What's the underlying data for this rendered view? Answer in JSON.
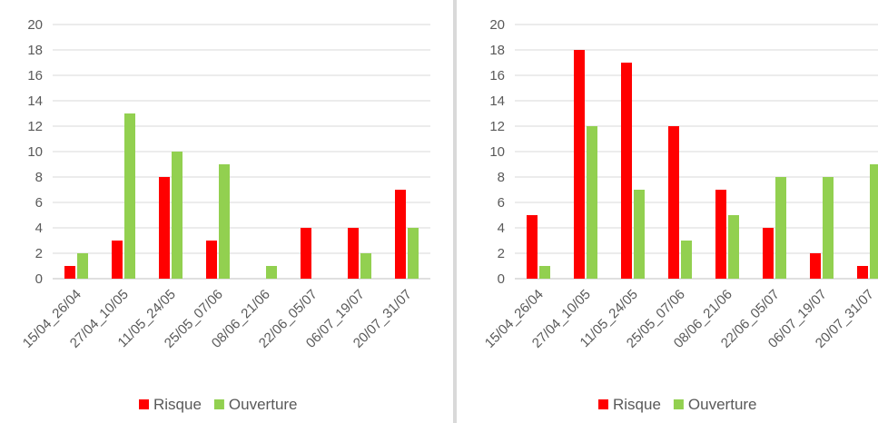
{
  "chart_data": [
    {
      "type": "bar",
      "categories": [
        "15/04_26/04",
        "27/04_10/05",
        "11/05_24/05",
        "25/05_07/06",
        "08/06_21/06",
        "22/06_05/07",
        "06/07_19/07",
        "20/07_31/07"
      ],
      "series": [
        {
          "name": "Risque",
          "values": [
            1,
            3,
            8,
            3,
            0,
            4,
            4,
            7
          ],
          "color": "#ff0000"
        },
        {
          "name": "Ouverture",
          "values": [
            2,
            13,
            10,
            9,
            1,
            0,
            2,
            4
          ],
          "color": "#92d050"
        }
      ],
      "ylim": [
        0,
        20
      ],
      "yticks": [
        "0",
        "2",
        "4",
        "6",
        "8",
        "10",
        "12",
        "14",
        "16",
        "18",
        "20"
      ],
      "grid": true,
      "legend": "bottom"
    },
    {
      "type": "bar",
      "categories": [
        "15/04_26/04",
        "27/04_10/05",
        "11/05_24/05",
        "25/05_07/06",
        "08/06_21/06",
        "22/06_05/07",
        "06/07_19/07",
        "20/07_31/07"
      ],
      "series": [
        {
          "name": "Risque",
          "values": [
            5,
            18,
            17,
            12,
            7,
            4,
            2,
            1
          ],
          "color": "#ff0000"
        },
        {
          "name": "Ouverture",
          "values": [
            1,
            12,
            7,
            3,
            5,
            8,
            8,
            9
          ],
          "color": "#92d050"
        }
      ],
      "ylim": [
        0,
        20
      ],
      "yticks": [
        "0",
        "2",
        "4",
        "6",
        "8",
        "10",
        "12",
        "14",
        "16",
        "18",
        "20"
      ],
      "grid": true,
      "legend": "bottom"
    }
  ]
}
